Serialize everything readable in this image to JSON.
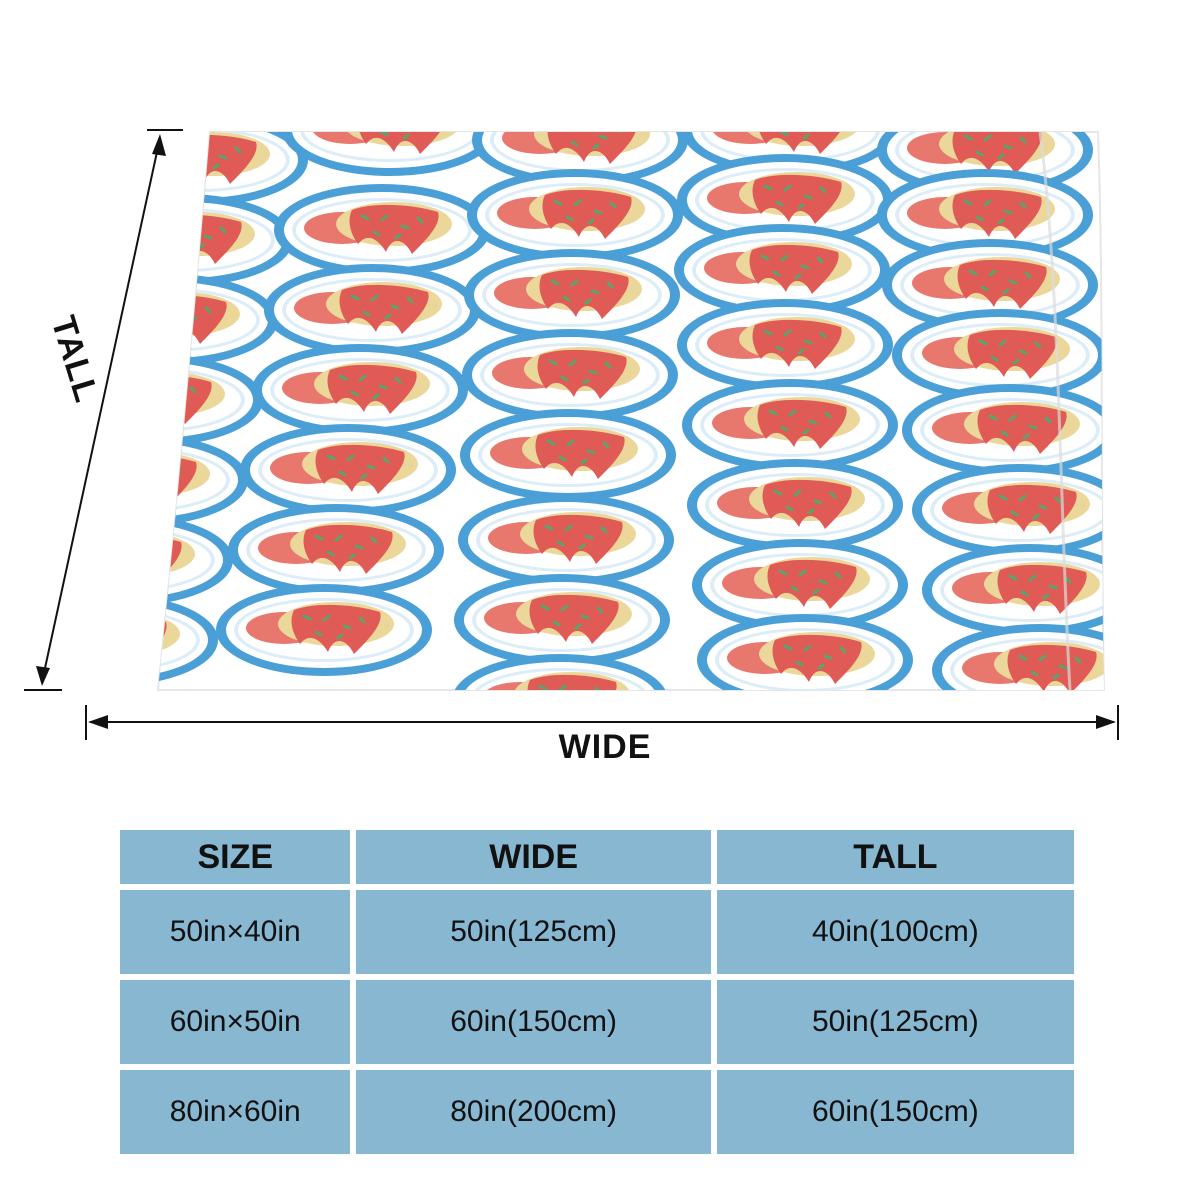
{
  "dimension_labels": {
    "tall": "TALL",
    "wide": "WIDE"
  },
  "pattern": {
    "motif": "omurice-plate",
    "plate_ring_color": "#4a9fd6",
    "sauce_color": "#e05a56",
    "rice_color": "#e8786e",
    "egg_color": "#ecd79a",
    "scallion_color": "#5aa56c",
    "fabric_color": "#ffffff"
  },
  "size_table": {
    "headers": [
      "SIZE",
      "WIDE",
      "TALL"
    ],
    "header_color": "#88b7d1",
    "rows": [
      [
        "50in×40in",
        "50in(125cm)",
        "40in(100cm)"
      ],
      [
        "60in×50in",
        "60in(150cm)",
        "50in(125cm)"
      ],
      [
        "80in×60in",
        "80in(200cm)",
        "60in(150cm)"
      ]
    ]
  }
}
